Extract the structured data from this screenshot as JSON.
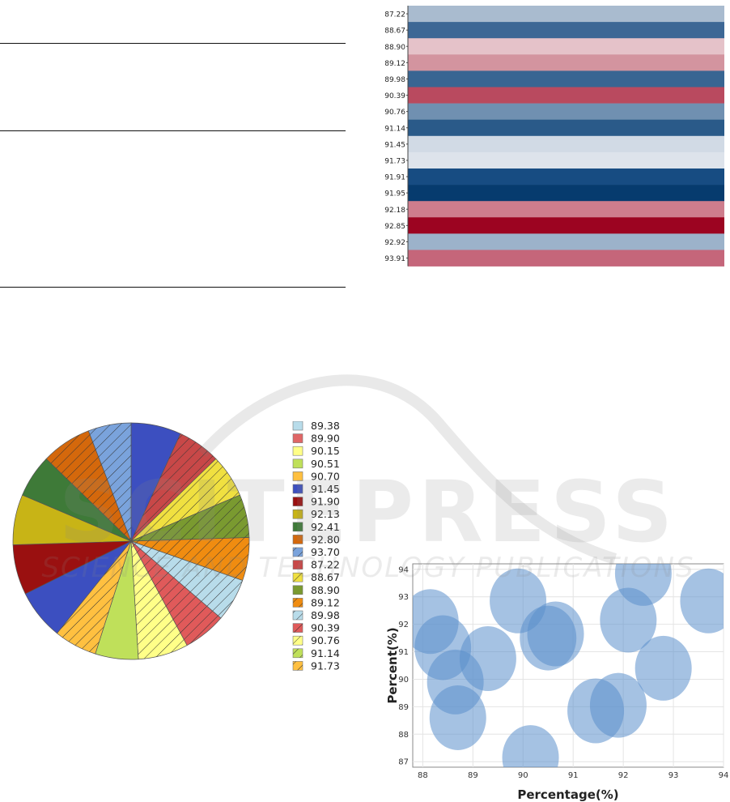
{
  "watermark": {
    "text": "SCITEPRESS",
    "subtext": "SCIENCE AND TECHNOLOGY PUBLICATIONS"
  },
  "chart_data": [
    {
      "type": "heatmap",
      "categories": [
        "87.22",
        "88.67",
        "88.90",
        "89.12",
        "89.98",
        "90.39",
        "90.76",
        "91.14",
        "91.45",
        "91.73",
        "91.91",
        "91.95",
        "92.18",
        "92.85",
        "92.92",
        "93.91"
      ],
      "colors": [
        "#a9bbcf",
        "#3d6795",
        "#e5c2c9",
        "#d3949f",
        "#386592",
        "#b94a5f",
        "#7090b1",
        "#2a5a89",
        "#d1dae5",
        "#dde3eb",
        "#174c82",
        "#063b6e",
        "#ce7d8d",
        "#9c0421",
        "#9cb2ca",
        "#c5667a"
      ]
    },
    {
      "type": "pie",
      "legend": [
        "89.38",
        "89.90",
        "90.15",
        "90.51",
        "90.70",
        "91.45",
        "91.90",
        "92.13",
        "92.41",
        "92.80",
        "93.70",
        "87.22",
        "88.67",
        "88.90",
        "89.12",
        "89.98",
        "90.39",
        "90.76",
        "91.14",
        "91.73"
      ],
      "legend_colors": [
        "#b8dcea",
        "#e06666",
        "#ffff88",
        "#bfe05a",
        "#ffc040",
        "#3c4fc0",
        "#9a1010",
        "#c8b416",
        "#3e7a38",
        "#d4680c",
        "#7aa3dc",
        "#c84848",
        "#f0e040",
        "#7a9a30",
        "#f08c10",
        "#b8dcea",
        "#e05a5a",
        "#ffff88",
        "#bfe05a",
        "#ffc040"
      ],
      "slices": [
        {
          "value": 7,
          "color": "#3c4fc0",
          "hatch": false
        },
        {
          "value": 6,
          "color": "#c84848",
          "hatch": true
        },
        {
          "value": 6,
          "color": "#f0e040",
          "hatch": true
        },
        {
          "value": 6,
          "color": "#7a9a30",
          "hatch": true
        },
        {
          "value": 6,
          "color": "#f08c10",
          "hatch": true
        },
        {
          "value": 6,
          "color": "#b8dcea",
          "hatch": true
        },
        {
          "value": 6,
          "color": "#e05a5a",
          "hatch": true
        },
        {
          "value": 7,
          "color": "#ffff88",
          "hatch": true
        },
        {
          "value": 6,
          "color": "#bfe05a",
          "hatch": false
        },
        {
          "value": 6,
          "color": "#ffc040",
          "hatch": true
        },
        {
          "value": 7,
          "color": "#3c4fc0",
          "hatch": false
        },
        {
          "value": 7,
          "color": "#9a1010",
          "hatch": false
        },
        {
          "value": 7,
          "color": "#c8b416",
          "hatch": false
        },
        {
          "value": 6,
          "color": "#3e7a38",
          "hatch": false
        },
        {
          "value": 7,
          "color": "#d4680c",
          "hatch": true
        },
        {
          "value": 6,
          "color": "#7aa3dc",
          "hatch": true
        }
      ]
    },
    {
      "type": "scatter",
      "xlabel": "Percentage(%)",
      "ylabel": "Percent(%)",
      "xlim": [
        87.8,
        94
      ],
      "ylim": [
        86.8,
        94.2
      ],
      "xticks": [
        "88",
        "89",
        "90",
        "91",
        "92",
        "93",
        "94"
      ],
      "yticks": [
        "87",
        "88",
        "89",
        "90",
        "91",
        "92",
        "93",
        "94"
      ],
      "grid": true,
      "bubble_color": "#5b8fcc",
      "points": [
        {
          "x": 88.15,
          "y": 92.1
        },
        {
          "x": 88.4,
          "y": 91.15
        },
        {
          "x": 88.65,
          "y": 89.9
        },
        {
          "x": 88.7,
          "y": 88.6
        },
        {
          "x": 89.3,
          "y": 90.75
        },
        {
          "x": 89.9,
          "y": 92.85
        },
        {
          "x": 90.15,
          "y": 87.15
        },
        {
          "x": 90.5,
          "y": 91.5
        },
        {
          "x": 90.65,
          "y": 91.65
        },
        {
          "x": 91.45,
          "y": 88.85
        },
        {
          "x": 91.9,
          "y": 89.05
        },
        {
          "x": 92.1,
          "y": 92.15
        },
        {
          "x": 92.4,
          "y": 93.85
        },
        {
          "x": 92.8,
          "y": 90.4
        },
        {
          "x": 93.7,
          "y": 92.85
        }
      ]
    }
  ]
}
